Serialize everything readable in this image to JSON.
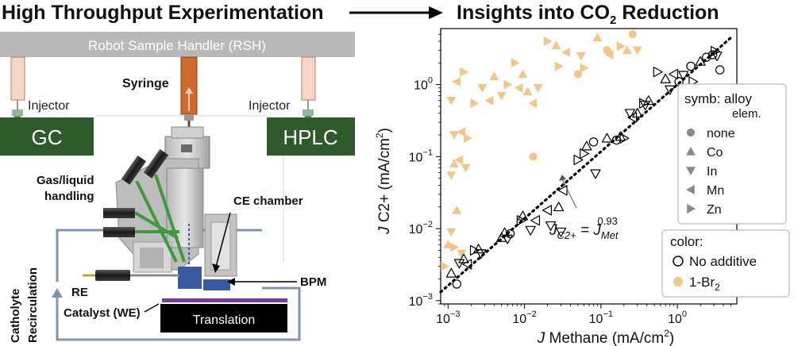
{
  "headings": {
    "left": "High Throughput Experimentation",
    "right_prefix": "Insights into CO",
    "right_sub": "2",
    "right_suffix": " Reduction"
  },
  "apparatus": {
    "robot_label": "Robot Sample Handler (RSH)",
    "syringe": "Syringe",
    "injector_left": "Injector",
    "injector_right": "Injector",
    "gc": "GC",
    "hplc": "HPLC",
    "gas_liquid_1": "Gas/liquid",
    "gas_liquid_2": "handling",
    "ce_chamber": "CE chamber",
    "bpm": "BPM",
    "re": "RE",
    "catalyst": "Catalyst (WE)",
    "translation": "Translation",
    "catholyte_1": "Catholyte",
    "catholyte_2": "Recirculation",
    "colors": {
      "instrument_green": "#2e5a2c",
      "robot_gray": "#b9b9b9",
      "syringe_orange": "#d2692d",
      "loop_blue": "#8193ad"
    }
  },
  "chart_data": {
    "type": "scatter",
    "xscale": "log",
    "yscale": "log",
    "xlim": [
      0.0008,
      6
    ],
    "ylim": [
      0.0009,
      6
    ],
    "xticks": [
      {
        "value": 0.001,
        "base": "10",
        "exp": "−3"
      },
      {
        "value": 0.01,
        "base": "10",
        "exp": "−2"
      },
      {
        "value": 0.1,
        "base": "10",
        "exp": "−1"
      },
      {
        "value": 1,
        "base": "10",
        "exp": "0"
      }
    ],
    "yticks": [
      {
        "value": 0.001,
        "base": "10",
        "exp": "−3"
      },
      {
        "value": 0.01,
        "base": "10",
        "exp": "−2"
      },
      {
        "value": 0.1,
        "base": "10",
        "exp": "−1"
      },
      {
        "value": 1,
        "base": "10",
        "exp": "0"
      }
    ],
    "xlabel": {
      "prefix": "J",
      "main": " Methane (mA/cm",
      "sup": "2",
      "end": ")"
    },
    "ylabel": {
      "prefix": "J",
      "main": " C2+ (mA/cm",
      "sup": "2",
      "end": ")"
    },
    "fit": {
      "exponent": 0.93,
      "x": [
        0.0008,
        5
      ],
      "label_main": "J",
      "label_sub": "C2+",
      "label_mid": " = J",
      "label_sub2": "Met",
      "label_sup": "0.93"
    },
    "legend_symbols": {
      "title1": "symb: alloy",
      "title2": "elem.",
      "entries": [
        {
          "marker": "circle",
          "label": "none"
        },
        {
          "marker": "triangle-up",
          "label": "Co"
        },
        {
          "marker": "triangle-down",
          "label": "In"
        },
        {
          "marker": "triangle-left",
          "label": "Mn"
        },
        {
          "marker": "triangle-right",
          "label": "Zn"
        }
      ]
    },
    "legend_colors": {
      "title": "color:",
      "entries": [
        {
          "style": "open",
          "label": "No additive"
        },
        {
          "style": "filled",
          "label": "1-Br",
          "sub": "2"
        }
      ]
    },
    "series": [
      {
        "name": "No additive",
        "color": "#000000",
        "fill": "none",
        "points": [
          {
            "x": 0.0011,
            "y": 0.0024,
            "m": "triangle-up"
          },
          {
            "x": 0.0013,
            "y": 0.0017,
            "m": "circle"
          },
          {
            "x": 0.0014,
            "y": 0.0033,
            "m": "triangle-down"
          },
          {
            "x": 0.0016,
            "y": 0.0038,
            "m": "triangle-up"
          },
          {
            "x": 0.0018,
            "y": 0.0032,
            "m": "triangle-left"
          },
          {
            "x": 0.0022,
            "y": 0.005,
            "m": "triangle-right"
          },
          {
            "x": 0.0025,
            "y": 0.0052,
            "m": "triangle-up"
          },
          {
            "x": 0.0027,
            "y": 0.0045,
            "m": "triangle-down"
          },
          {
            "x": 0.005,
            "y": 0.0075,
            "m": "triangle-up"
          },
          {
            "x": 0.0055,
            "y": 0.0088,
            "m": "triangle-up"
          },
          {
            "x": 0.006,
            "y": 0.0072,
            "m": "triangle-down"
          },
          {
            "x": 0.0065,
            "y": 0.0085,
            "m": "circle"
          },
          {
            "x": 0.009,
            "y": 0.013,
            "m": "triangle-right"
          },
          {
            "x": 0.0095,
            "y": 0.015,
            "m": "triangle-up"
          },
          {
            "x": 0.012,
            "y": 0.0095,
            "m": "triangle-down"
          },
          {
            "x": 0.014,
            "y": 0.013,
            "m": "triangle-left"
          },
          {
            "x": 0.02,
            "y": 0.018,
            "m": "triangle-left"
          },
          {
            "x": 0.022,
            "y": 0.011,
            "m": "triangle-down"
          },
          {
            "x": 0.028,
            "y": 0.02,
            "m": "triangle-up"
          },
          {
            "x": 0.03,
            "y": 0.009,
            "m": "triangle-down"
          },
          {
            "x": 0.032,
            "y": 0.034,
            "m": "triangle-left"
          },
          {
            "x": 0.05,
            "y": 0.09,
            "m": "triangle-right"
          },
          {
            "x": 0.06,
            "y": 0.11,
            "m": "triangle-right"
          },
          {
            "x": 0.065,
            "y": 0.14,
            "m": "triangle-up"
          },
          {
            "x": 0.08,
            "y": 0.16,
            "m": "circle"
          },
          {
            "x": 0.085,
            "y": 0.058,
            "m": "triangle-down"
          },
          {
            "x": 0.12,
            "y": 0.18,
            "m": "triangle-up"
          },
          {
            "x": 0.16,
            "y": 0.17,
            "m": "circle"
          },
          {
            "x": 0.18,
            "y": 0.19,
            "m": "triangle-up"
          },
          {
            "x": 0.2,
            "y": 0.18,
            "m": "triangle-right"
          },
          {
            "x": 0.24,
            "y": 0.4,
            "m": "triangle-down"
          },
          {
            "x": 0.26,
            "y": 0.35,
            "m": "triangle-left"
          },
          {
            "x": 0.3,
            "y": 0.4,
            "m": "triangle-up"
          },
          {
            "x": 0.36,
            "y": 0.55,
            "m": "triangle-right"
          },
          {
            "x": 0.38,
            "y": 0.52,
            "m": "triangle-down"
          },
          {
            "x": 0.42,
            "y": 0.6,
            "m": "triangle-up"
          },
          {
            "x": 0.55,
            "y": 1.5,
            "m": "triangle-right"
          },
          {
            "x": 0.7,
            "y": 1.2,
            "m": "triangle-up"
          },
          {
            "x": 0.8,
            "y": 0.85,
            "m": "triangle-down"
          },
          {
            "x": 0.9,
            "y": 1.4,
            "m": "triangle-left"
          },
          {
            "x": 1.05,
            "y": 1.1,
            "m": "circle"
          },
          {
            "x": 1.2,
            "y": 1.35,
            "m": "triangle-down"
          },
          {
            "x": 1.5,
            "y": 1.8,
            "m": "circle"
          },
          {
            "x": 1.6,
            "y": 1.1,
            "m": "triangle-right"
          },
          {
            "x": 2.0,
            "y": 2.1,
            "m": "triangle-up"
          },
          {
            "x": 2.4,
            "y": 2.4,
            "m": "circle"
          },
          {
            "x": 2.9,
            "y": 2.6,
            "m": "circle"
          },
          {
            "x": 3.1,
            "y": 2.9,
            "m": "triangle-right"
          },
          {
            "x": 3.3,
            "y": 2.5,
            "m": "triangle-down"
          },
          {
            "x": 3.6,
            "y": 1.6,
            "m": "circle"
          }
        ]
      },
      {
        "name": "1-Br2",
        "color": "#f2c68a",
        "fill": "#f2c68a",
        "points": [
          {
            "x": 0.0009,
            "y": 0.003,
            "m": "triangle-right"
          },
          {
            "x": 0.001,
            "y": 0.006,
            "m": "triangle-up"
          },
          {
            "x": 0.0011,
            "y": 0.009,
            "m": "triangle-down"
          },
          {
            "x": 0.0012,
            "y": 0.0055,
            "m": "triangle-right"
          },
          {
            "x": 0.0013,
            "y": 0.018,
            "m": "triangle-up"
          },
          {
            "x": 0.0015,
            "y": 0.0045,
            "m": "triangle-down"
          },
          {
            "x": 0.0011,
            "y": 0.055,
            "m": "triangle-down"
          },
          {
            "x": 0.0012,
            "y": 0.08,
            "m": "triangle-up"
          },
          {
            "x": 0.0014,
            "y": 0.09,
            "m": "triangle-left"
          },
          {
            "x": 0.0017,
            "y": 0.07,
            "m": "triangle-down"
          },
          {
            "x": 0.0012,
            "y": 0.2,
            "m": "triangle-down"
          },
          {
            "x": 0.0015,
            "y": 0.22,
            "m": "triangle-left"
          },
          {
            "x": 0.0018,
            "y": 0.18,
            "m": "triangle-right"
          },
          {
            "x": 0.0011,
            "y": 0.6,
            "m": "triangle-down"
          },
          {
            "x": 0.0013,
            "y": 1.1,
            "m": "triangle-left"
          },
          {
            "x": 0.0016,
            "y": 1.5,
            "m": "triangle-right"
          },
          {
            "x": 0.0022,
            "y": 0.55,
            "m": "triangle-right"
          },
          {
            "x": 0.0028,
            "y": 0.9,
            "m": "triangle-down"
          },
          {
            "x": 0.0035,
            "y": 0.6,
            "m": "triangle-left"
          },
          {
            "x": 0.004,
            "y": 1.3,
            "m": "triangle-up"
          },
          {
            "x": 0.005,
            "y": 0.7,
            "m": "triangle-down"
          },
          {
            "x": 0.006,
            "y": 1.0,
            "m": "triangle-right"
          },
          {
            "x": 0.0075,
            "y": 2.0,
            "m": "triangle-right"
          },
          {
            "x": 0.0085,
            "y": 0.9,
            "m": "triangle-left"
          },
          {
            "x": 0.0095,
            "y": 1.4,
            "m": "triangle-up"
          },
          {
            "x": 0.011,
            "y": 0.8,
            "m": "triangle-up"
          },
          {
            "x": 0.013,
            "y": 0.1,
            "m": "circle"
          },
          {
            "x": 0.013,
            "y": 0.55,
            "m": "triangle-left"
          },
          {
            "x": 0.015,
            "y": 0.9,
            "m": "triangle-down"
          },
          {
            "x": 0.02,
            "y": 4.0,
            "m": "triangle-right"
          },
          {
            "x": 0.026,
            "y": 3.5,
            "m": "triangle-up"
          },
          {
            "x": 0.028,
            "y": 1.8,
            "m": "triangle-right"
          },
          {
            "x": 0.035,
            "y": 2.8,
            "m": "triangle-left"
          },
          {
            "x": 0.05,
            "y": 1.4,
            "m": "circle"
          },
          {
            "x": 0.055,
            "y": 2.5,
            "m": "triangle-down"
          },
          {
            "x": 0.06,
            "y": 1.7,
            "m": "triangle-right"
          },
          {
            "x": 0.09,
            "y": 4.5,
            "m": "triangle-up"
          },
          {
            "x": 0.12,
            "y": 3.0,
            "m": "circle"
          },
          {
            "x": 0.13,
            "y": 2.6,
            "m": "triangle-left"
          },
          {
            "x": 0.18,
            "y": 3.4,
            "m": "triangle-right"
          },
          {
            "x": 0.22,
            "y": 3.0,
            "m": "triangle-up"
          },
          {
            "x": 0.26,
            "y": 5.0,
            "m": "circle"
          },
          {
            "x": 0.3,
            "y": 3.0,
            "m": "triangle-down"
          }
        ]
      }
    ]
  }
}
